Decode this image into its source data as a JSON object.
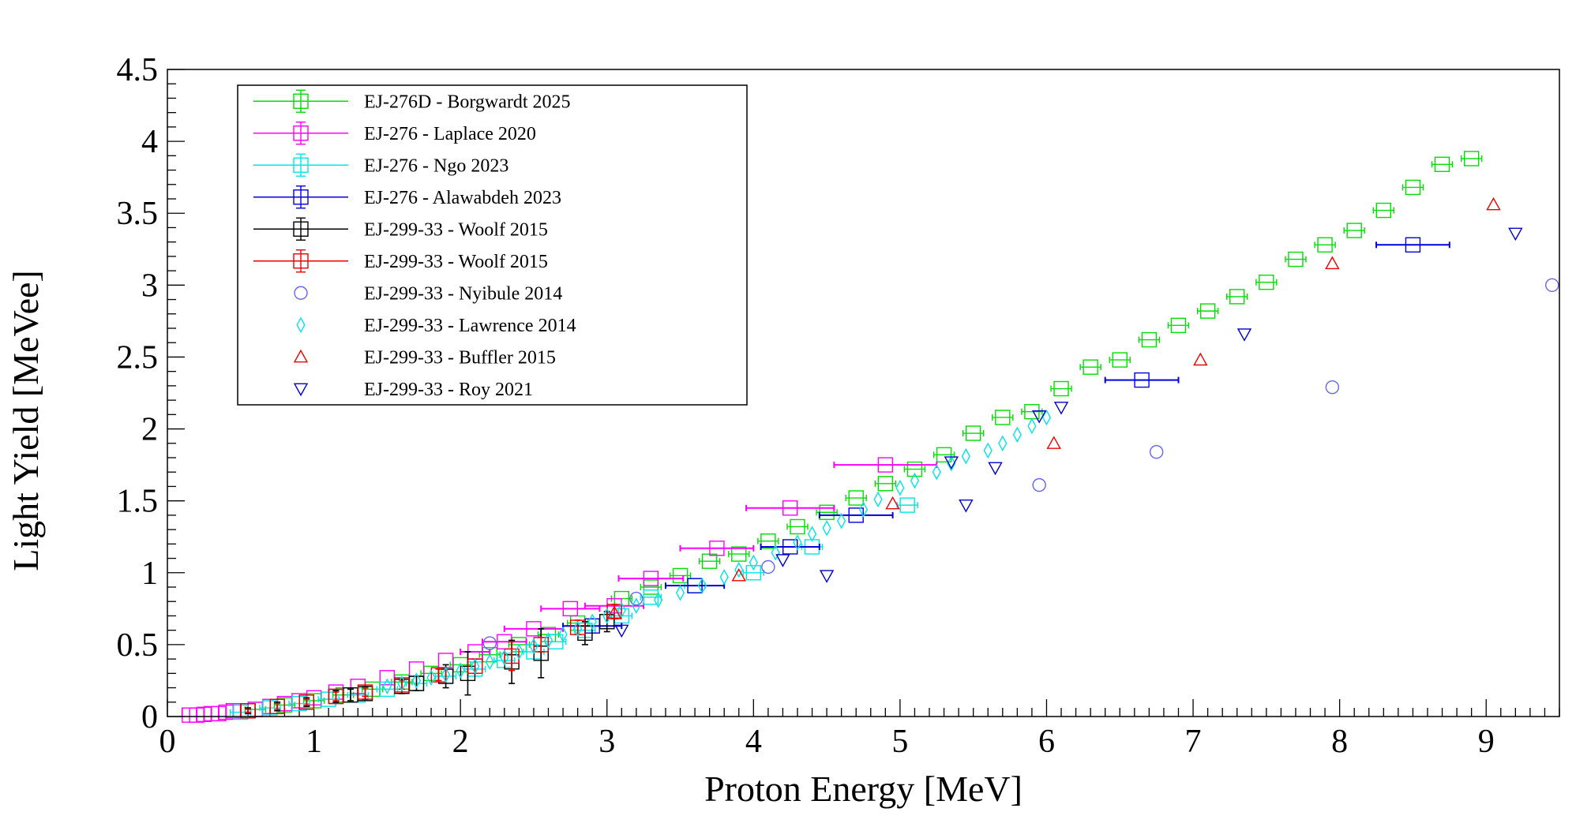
{
  "chart_data": {
    "type": "scatter",
    "title": "",
    "xlabel": "Proton Energy [MeV]",
    "ylabel": "Light Yield [MeVee]",
    "xlim": [
      0,
      9.5
    ],
    "ylim": [
      0,
      4.5
    ],
    "xticks": [
      "0",
      "1",
      "2",
      "3",
      "4",
      "5",
      "6",
      "7",
      "8",
      "9"
    ],
    "yticks": [
      "0",
      "0.5",
      "1",
      "1.5",
      "2",
      "2.5",
      "3",
      "3.5",
      "4",
      "4.5"
    ],
    "legend_position": "top-left",
    "grid": false,
    "series": [
      {
        "name": "EJ-276D - Borgwardt 2025",
        "color": "#00dd00",
        "marker": "open-square",
        "error_bars": true,
        "points": [
          [
            0.6,
            0.05
          ],
          [
            0.8,
            0.08
          ],
          [
            1.0,
            0.11
          ],
          [
            1.2,
            0.15
          ],
          [
            1.4,
            0.19
          ],
          [
            1.6,
            0.24
          ],
          [
            1.8,
            0.3
          ],
          [
            2.0,
            0.36
          ],
          [
            2.2,
            0.43
          ],
          [
            2.4,
            0.5
          ],
          [
            2.6,
            0.57
          ],
          [
            2.8,
            0.65
          ],
          [
            3.1,
            0.82
          ],
          [
            3.3,
            0.9
          ],
          [
            3.5,
            0.98
          ],
          [
            3.7,
            1.08
          ],
          [
            3.9,
            1.13
          ],
          [
            4.1,
            1.22
          ],
          [
            4.3,
            1.32
          ],
          [
            4.5,
            1.42
          ],
          [
            4.7,
            1.52
          ],
          [
            4.9,
            1.62
          ],
          [
            5.1,
            1.72
          ],
          [
            5.3,
            1.82
          ],
          [
            5.5,
            1.97
          ],
          [
            5.7,
            2.08
          ],
          [
            5.9,
            2.12
          ],
          [
            6.1,
            2.28
          ],
          [
            6.3,
            2.43
          ],
          [
            6.5,
            2.48
          ],
          [
            6.7,
            2.62
          ],
          [
            6.9,
            2.72
          ],
          [
            7.1,
            2.82
          ],
          [
            7.3,
            2.92
          ],
          [
            7.5,
            3.02
          ],
          [
            7.7,
            3.18
          ],
          [
            7.9,
            3.28
          ],
          [
            8.1,
            3.38
          ],
          [
            8.3,
            3.52
          ],
          [
            8.5,
            3.68
          ],
          [
            8.7,
            3.84
          ],
          [
            8.9,
            3.88
          ]
        ]
      },
      {
        "name": "EJ-276 - Laplace 2020",
        "color": "#ff00ff",
        "marker": "open-square",
        "error_bars": true,
        "points": [
          [
            0.15,
            0.01
          ],
          [
            0.2,
            0.01
          ],
          [
            0.25,
            0.015
          ],
          [
            0.3,
            0.02
          ],
          [
            0.35,
            0.02
          ],
          [
            0.4,
            0.03
          ],
          [
            0.45,
            0.04
          ],
          [
            0.5,
            0.04
          ],
          [
            0.6,
            0.05
          ],
          [
            0.7,
            0.07
          ],
          [
            0.8,
            0.09
          ],
          [
            0.9,
            0.11
          ],
          [
            1.0,
            0.13
          ],
          [
            1.15,
            0.17
          ],
          [
            1.3,
            0.21
          ],
          [
            1.5,
            0.27
          ],
          [
            1.7,
            0.33
          ],
          [
            1.9,
            0.39
          ],
          [
            2.1,
            0.45
          ],
          [
            2.3,
            0.52
          ],
          [
            2.5,
            0.61
          ],
          [
            2.75,
            0.75
          ],
          [
            3.05,
            0.77
          ],
          [
            3.3,
            0.96
          ],
          [
            3.75,
            1.17
          ],
          [
            4.25,
            1.45
          ],
          [
            4.9,
            1.75
          ]
        ],
        "xerr": [
          0,
          0,
          0,
          0,
          0,
          0,
          0,
          0,
          0,
          0,
          0,
          0,
          0,
          0,
          0,
          0,
          0,
          0,
          0.1,
          0.15,
          0.2,
          0.2,
          0.2,
          0.22,
          0.25,
          0.3,
          0.35
        ]
      },
      {
        "name": "EJ-276 - Ngo 2023",
        "color": "#00e5e5",
        "marker": "open-square",
        "error_bars": true,
        "points": [
          [
            0.5,
            0.03
          ],
          [
            0.7,
            0.06
          ],
          [
            0.9,
            0.09
          ],
          [
            1.1,
            0.12
          ],
          [
            1.3,
            0.15
          ],
          [
            1.5,
            0.19
          ],
          [
            1.7,
            0.23
          ],
          [
            1.9,
            0.28
          ],
          [
            2.1,
            0.33
          ],
          [
            2.3,
            0.39
          ],
          [
            2.5,
            0.45
          ],
          [
            2.65,
            0.52
          ],
          [
            2.85,
            0.6
          ],
          [
            3.1,
            0.7
          ],
          [
            3.3,
            0.83
          ],
          [
            3.6,
            0.91
          ],
          [
            4.0,
            1.0
          ],
          [
            4.4,
            1.18
          ],
          [
            5.05,
            1.47
          ]
        ]
      },
      {
        "name": "EJ-276 - Alawabdeh 2023",
        "color": "#0000dd",
        "marker": "open-square",
        "error_bars": true,
        "points": [
          [
            2.9,
            0.63
          ],
          [
            3.6,
            0.91
          ],
          [
            4.25,
            1.18
          ],
          [
            4.7,
            1.4
          ],
          [
            6.65,
            2.34
          ],
          [
            8.5,
            3.28
          ]
        ],
        "xerr": [
          0.2,
          0.2,
          0.2,
          0.25,
          0.25,
          0.25
        ]
      },
      {
        "name": "EJ-299-33 - Woolf 2015",
        "color": "#000000",
        "marker": "open-square",
        "error_bars": true,
        "points": [
          [
            0.55,
            0.04
          ],
          [
            0.75,
            0.07
          ],
          [
            0.95,
            0.1
          ],
          [
            1.15,
            0.14
          ],
          [
            1.25,
            0.15
          ],
          [
            1.35,
            0.16
          ],
          [
            1.6,
            0.21
          ],
          [
            1.7,
            0.23
          ],
          [
            1.9,
            0.28
          ],
          [
            2.05,
            0.3
          ],
          [
            2.35,
            0.38
          ],
          [
            2.55,
            0.44
          ],
          [
            2.85,
            0.58
          ],
          [
            3.0,
            0.66
          ]
        ],
        "yerr": [
          0.02,
          0.03,
          0.03,
          0.04,
          0.04,
          0.04,
          0.05,
          0.05,
          0.08,
          0.15,
          0.15,
          0.17,
          0.08,
          0.07
        ]
      },
      {
        "name": "EJ-299-33 - Woolf 2015",
        "color": "#ee0000",
        "marker": "open-square",
        "error_bars": true,
        "points": [
          [
            0.55,
            0.04
          ],
          [
            0.75,
            0.07
          ],
          [
            0.95,
            0.1
          ],
          [
            1.15,
            0.14
          ],
          [
            1.35,
            0.17
          ],
          [
            1.6,
            0.22
          ],
          [
            1.85,
            0.29
          ],
          [
            2.1,
            0.35
          ],
          [
            2.35,
            0.42
          ],
          [
            2.55,
            0.5
          ],
          [
            2.8,
            0.62
          ],
          [
            3.05,
            0.73
          ]
        ],
        "yerr": [
          0.01,
          0.02,
          0.02,
          0.03,
          0.03,
          0.03,
          0.04,
          0.05,
          0.1,
          0.05,
          0.05,
          0.05
        ]
      },
      {
        "name": "EJ-299-33 - Nyibule 2014",
        "color": "#6666ee",
        "marker": "open-circle",
        "error_bars": false,
        "points": [
          [
            2.2,
            0.51
          ],
          [
            3.2,
            0.82
          ],
          [
            4.1,
            1.04
          ],
          [
            5.95,
            1.61
          ],
          [
            6.75,
            1.84
          ],
          [
            7.95,
            2.29
          ],
          [
            9.45,
            3.0
          ]
        ]
      },
      {
        "name": "EJ-299-33 - Lawrence 2014",
        "color": "#00e5e5",
        "marker": "open-diamond",
        "error_bars": false,
        "points": [
          [
            1.5,
            0.21
          ],
          [
            1.6,
            0.23
          ],
          [
            1.7,
            0.25
          ],
          [
            1.8,
            0.27
          ],
          [
            1.9,
            0.29
          ],
          [
            2.0,
            0.32
          ],
          [
            2.1,
            0.35
          ],
          [
            2.2,
            0.38
          ],
          [
            2.3,
            0.41
          ],
          [
            2.4,
            0.45
          ],
          [
            2.5,
            0.49
          ],
          [
            2.6,
            0.53
          ],
          [
            2.7,
            0.57
          ],
          [
            2.8,
            0.61
          ],
          [
            2.9,
            0.66
          ],
          [
            3.0,
            0.7
          ],
          [
            3.1,
            0.74
          ],
          [
            3.2,
            0.77
          ],
          [
            3.35,
            0.81
          ],
          [
            3.5,
            0.86
          ],
          [
            3.65,
            0.91
          ],
          [
            3.8,
            0.97
          ],
          [
            3.9,
            1.02
          ],
          [
            4.0,
            1.07
          ],
          [
            4.15,
            1.14
          ],
          [
            4.3,
            1.21
          ],
          [
            4.4,
            1.27
          ],
          [
            4.5,
            1.31
          ],
          [
            4.6,
            1.36
          ],
          [
            4.75,
            1.44
          ],
          [
            4.85,
            1.51
          ],
          [
            5.0,
            1.59
          ],
          [
            5.1,
            1.64
          ],
          [
            5.25,
            1.7
          ],
          [
            5.35,
            1.76
          ],
          [
            5.45,
            1.81
          ],
          [
            5.6,
            1.85
          ],
          [
            5.7,
            1.9
          ],
          [
            5.8,
            1.96
          ],
          [
            5.9,
            2.02
          ],
          [
            6.0,
            2.08
          ]
        ]
      },
      {
        "name": "EJ-299-33 - Buffler 2015",
        "color": "#ee0000",
        "marker": "open-triangle-up",
        "error_bars": false,
        "points": [
          [
            3.05,
            0.72
          ],
          [
            3.9,
            0.98
          ],
          [
            4.95,
            1.48
          ],
          [
            6.05,
            1.9
          ],
          [
            7.05,
            2.48
          ],
          [
            7.95,
            3.15
          ],
          [
            9.05,
            3.56
          ]
        ]
      },
      {
        "name": "EJ-299-33 - Roy 2021",
        "color": "#0000cc",
        "marker": "open-triangle-down",
        "error_bars": false,
        "points": [
          [
            3.1,
            0.6
          ],
          [
            4.2,
            1.09
          ],
          [
            4.5,
            0.98
          ],
          [
            5.35,
            1.77
          ],
          [
            5.45,
            1.47
          ],
          [
            5.65,
            1.73
          ],
          [
            5.95,
            2.09
          ],
          [
            6.1,
            2.15
          ],
          [
            7.35,
            2.66
          ],
          [
            9.2,
            3.36
          ]
        ]
      }
    ]
  }
}
